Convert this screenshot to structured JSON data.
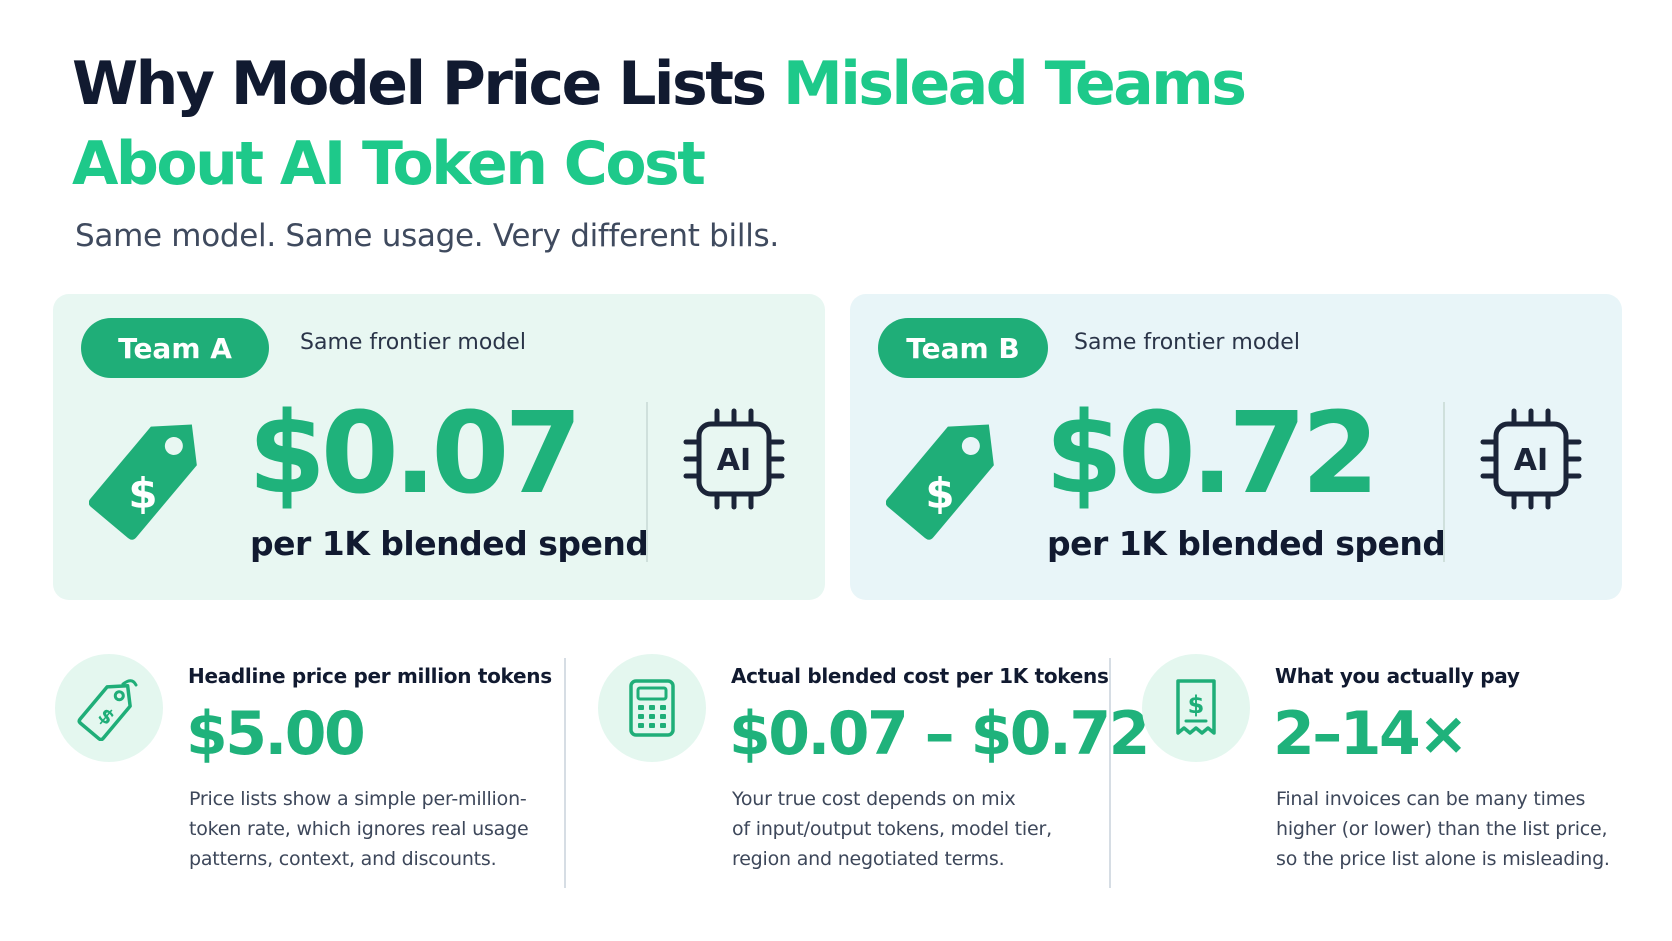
{
  "header": {
    "title_part1": "Why Model Price Lists ",
    "title_part2": "Mislead Teams",
    "title_part3": "About AI Token Cost",
    "subtitle": "Same model. Same usage. Very different bills."
  },
  "teams": [
    {
      "label": "Team A",
      "note": "Same frontier model",
      "price": "$0.07",
      "price_caption": "per 1K blended spend",
      "tag_symbol": "$",
      "chip_text": "AI",
      "icons": [
        "price-tag-icon",
        "ai-chip-icon"
      ]
    },
    {
      "label": "Team B",
      "note": "Same frontier model",
      "price": "$0.72",
      "price_caption": "per 1K blended spend",
      "tag_symbol": "$",
      "chip_text": "AI",
      "icons": [
        "price-tag-icon",
        "ai-chip-icon"
      ]
    }
  ],
  "stats": [
    {
      "icon": "price-tag-outline-icon",
      "heading": "Headline price per million tokens",
      "value": "$5.00",
      "body": [
        "Price lists show a simple per-million-",
        "token rate, which ignores real usage",
        "patterns, context, and discounts."
      ]
    },
    {
      "icon": "calculator-icon",
      "heading": "Actual blended cost per 1K tokens",
      "value": "$0.07 – $0.72",
      "body": [
        "Your true cost depends on mix",
        "of input/output tokens, model tier,",
        "region and negotiated terms."
      ]
    },
    {
      "icon": "receipt-icon",
      "heading": "What you actually pay",
      "value": "2–14×",
      "body": [
        "Final invoices can be many times",
        "higher (or lower) than the list price,",
        "so the price list alone is misleading."
      ]
    }
  ],
  "colors": {
    "accent": "#1ec98a",
    "accent_dark": "#1fae78",
    "navy": "#111a30",
    "panel_a_bg": "#e8f7f2",
    "panel_b_bg": "#e8f5f8"
  }
}
